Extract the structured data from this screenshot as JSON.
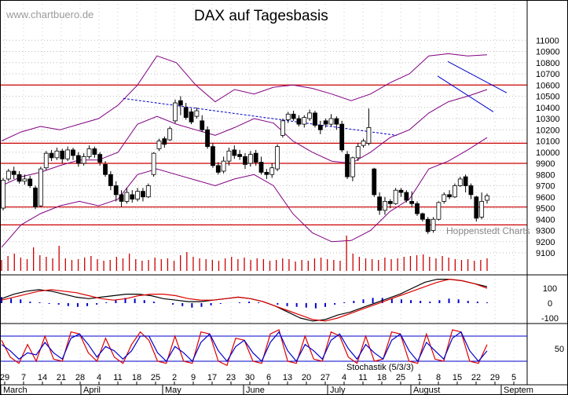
{
  "title": "DAX auf Tagesbasis",
  "watermark": "www.chartbuero.de",
  "source_label": "Hoppenstedt Charts",
  "stochastic_label": "Stochastik (5/3/3)",
  "colors": {
    "resistance_lines": "#cc0000",
    "trend_lines": "#0000cc",
    "bollinger": "#800080",
    "macd_line": "#000000",
    "signal_line": "#dd0000",
    "histogram": "#0000cc",
    "volume": "#cc0000"
  },
  "chart_data": {
    "type": "candlestick",
    "title": "DAX auf Tagesbasis",
    "y_ticks": [
      9100,
      9200,
      9300,
      9400,
      9500,
      9600,
      9700,
      9800,
      9900,
      10000,
      10100,
      10200,
      10300,
      10400,
      10500,
      10600,
      10700,
      10800,
      10900,
      11000
    ],
    "ylim": [
      9030,
      11040
    ],
    "horizontal_levels": [
      10600,
      10080,
      9900,
      9510,
      9350
    ],
    "day_ticks": [
      "29",
      "7",
      "14",
      "21",
      "28",
      "4",
      "11",
      "18",
      "25",
      "2",
      "9",
      "17",
      "23",
      "30",
      "6",
      "13",
      "20",
      "27",
      "4",
      "11",
      "18",
      "25",
      "1",
      "8",
      "15",
      "22",
      "29",
      "5"
    ],
    "month_labels": [
      "March",
      "April",
      "May",
      "June",
      "July",
      "August",
      "Septem"
    ],
    "candles": [
      {
        "o": 9500,
        "c": 9750,
        "h": 9770,
        "l": 9480
      },
      {
        "o": 9760,
        "c": 9830,
        "h": 9850,
        "l": 9740
      },
      {
        "o": 9830,
        "c": 9800,
        "h": 9870,
        "l": 9760
      },
      {
        "o": 9800,
        "c": 9740,
        "h": 9830,
        "l": 9720
      },
      {
        "o": 9740,
        "c": 9760,
        "h": 9800,
        "l": 9710
      },
      {
        "o": 9760,
        "c": 9700,
        "h": 9790,
        "l": 9680
      },
      {
        "o": 9680,
        "c": 9510,
        "h": 9700,
        "l": 9490
      },
      {
        "o": 9520,
        "c": 9850,
        "h": 9870,
        "l": 9510
      },
      {
        "o": 9860,
        "c": 9990,
        "h": 10010,
        "l": 9840
      },
      {
        "o": 9990,
        "c": 9950,
        "h": 10020,
        "l": 9920
      },
      {
        "o": 9950,
        "c": 10010,
        "h": 10040,
        "l": 9930
      },
      {
        "o": 10010,
        "c": 9940,
        "h": 10030,
        "l": 9900
      },
      {
        "o": 9940,
        "c": 10020,
        "h": 10050,
        "l": 9920
      },
      {
        "o": 10020,
        "c": 9970,
        "h": 10040,
        "l": 9930
      },
      {
        "o": 9970,
        "c": 9900,
        "h": 10000,
        "l": 9870
      },
      {
        "o": 9900,
        "c": 9960,
        "h": 9990,
        "l": 9880
      },
      {
        "o": 9960,
        "c": 10030,
        "h": 10060,
        "l": 9940
      },
      {
        "o": 10030,
        "c": 9980,
        "h": 10050,
        "l": 9950
      },
      {
        "o": 9980,
        "c": 9910,
        "h": 10000,
        "l": 9880
      },
      {
        "o": 9890,
        "c": 9800,
        "h": 9920,
        "l": 9780
      },
      {
        "o": 9800,
        "c": 9700,
        "h": 9830,
        "l": 9660
      },
      {
        "o": 9700,
        "c": 9620,
        "h": 9740,
        "l": 9560
      },
      {
        "o": 9620,
        "c": 9560,
        "h": 9660,
        "l": 9510
      },
      {
        "o": 9560,
        "c": 9640,
        "h": 9680,
        "l": 9540
      },
      {
        "o": 9620,
        "c": 9580,
        "h": 9660,
        "l": 9550
      },
      {
        "o": 9580,
        "c": 9650,
        "h": 9680,
        "l": 9560
      },
      {
        "o": 9650,
        "c": 9600,
        "h": 9680,
        "l": 9560
      },
      {
        "o": 9600,
        "c": 9700,
        "h": 9720,
        "l": 9590
      },
      {
        "o": 9800,
        "c": 9990,
        "h": 10000,
        "l": 9780
      },
      {
        "o": 10030,
        "c": 10100,
        "h": 10120,
        "l": 10010
      },
      {
        "o": 10120,
        "c": 10070,
        "h": 10140,
        "l": 10040
      },
      {
        "o": 10110,
        "c": 10210,
        "h": 10230,
        "l": 10100
      },
      {
        "o": 10280,
        "c": 10440,
        "h": 10470,
        "l": 10260
      },
      {
        "o": 10460,
        "c": 10420,
        "h": 10500,
        "l": 10330
      },
      {
        "o": 10400,
        "c": 10310,
        "h": 10440,
        "l": 10290
      },
      {
        "o": 10360,
        "c": 10270,
        "h": 10390,
        "l": 10250
      },
      {
        "o": 10320,
        "c": 10370,
        "h": 10400,
        "l": 10300
      },
      {
        "o": 10280,
        "c": 10200,
        "h": 10330,
        "l": 10180
      },
      {
        "o": 10200,
        "c": 10050,
        "h": 10230,
        "l": 10030
      },
      {
        "o": 10050,
        "c": 9880,
        "h": 10080,
        "l": 9860
      },
      {
        "o": 9880,
        "c": 9820,
        "h": 9910,
        "l": 9800
      },
      {
        "o": 9830,
        "c": 9920,
        "h": 9960,
        "l": 9810
      },
      {
        "o": 9920,
        "c": 10010,
        "h": 10040,
        "l": 9880
      },
      {
        "o": 10020,
        "c": 9970,
        "h": 10060,
        "l": 9940
      },
      {
        "o": 9980,
        "c": 9960,
        "h": 10020,
        "l": 9930
      },
      {
        "o": 9960,
        "c": 9890,
        "h": 9990,
        "l": 9850
      },
      {
        "o": 9900,
        "c": 9980,
        "h": 10010,
        "l": 9870
      },
      {
        "o": 9990,
        "c": 9910,
        "h": 10020,
        "l": 9880
      },
      {
        "o": 9910,
        "c": 9820,
        "h": 9960,
        "l": 9800
      },
      {
        "o": 9820,
        "c": 9800,
        "h": 9850,
        "l": 9760
      },
      {
        "o": 9800,
        "c": 9860,
        "h": 9900,
        "l": 9770
      },
      {
        "o": 9850,
        "c": 10050,
        "h": 10070,
        "l": 9830
      },
      {
        "o": 10150,
        "c": 10280,
        "h": 10300,
        "l": 10130
      },
      {
        "o": 10290,
        "c": 10340,
        "h": 10360,
        "l": 10260
      },
      {
        "o": 10340,
        "c": 10300,
        "h": 10370,
        "l": 10280
      },
      {
        "o": 10300,
        "c": 10250,
        "h": 10330,
        "l": 10230
      },
      {
        "o": 10250,
        "c": 10310,
        "h": 10330,
        "l": 10220
      },
      {
        "o": 10300,
        "c": 10350,
        "h": 10380,
        "l": 10280
      },
      {
        "o": 10350,
        "c": 10240,
        "h": 10370,
        "l": 10220
      },
      {
        "o": 10240,
        "c": 10200,
        "h": 10280,
        "l": 10160
      },
      {
        "o": 10280,
        "c": 10250,
        "h": 10300,
        "l": 10220
      },
      {
        "o": 10250,
        "c": 10300,
        "h": 10340,
        "l": 10230
      },
      {
        "o": 10300,
        "c": 10250,
        "h": 10320,
        "l": 10200
      },
      {
        "o": 10250,
        "c": 10020,
        "h": 10280,
        "l": 10000
      },
      {
        "o": 9980,
        "c": 9780,
        "h": 10010,
        "l": 9760
      },
      {
        "o": 9780,
        "c": 9950,
        "h": 9960,
        "l": 9740
      },
      {
        "o": 9950,
        "c": 10050,
        "h": 10080,
        "l": 9920
      },
      {
        "o": 10060,
        "c": 10100,
        "h": 10120,
        "l": 10040
      },
      {
        "o": 10080,
        "c": 10220,
        "h": 10390,
        "l": 10060
      },
      {
        "o": 9850,
        "c": 9620,
        "h": 9860,
        "l": 9600
      },
      {
        "o": 9600,
        "c": 9480,
        "h": 9640,
        "l": 9440
      },
      {
        "o": 9480,
        "c": 9560,
        "h": 9600,
        "l": 9440
      },
      {
        "o": 9560,
        "c": 9540,
        "h": 9580,
        "l": 9500
      },
      {
        "o": 9540,
        "c": 9660,
        "h": 9680,
        "l": 9530
      },
      {
        "o": 9660,
        "c": 9640,
        "h": 9680,
        "l": 9600
      },
      {
        "o": 9640,
        "c": 9570,
        "h": 9660,
        "l": 9550
      },
      {
        "o": 9560,
        "c": 9540,
        "h": 9650,
        "l": 9510
      },
      {
        "o": 9540,
        "c": 9450,
        "h": 9560,
        "l": 9430
      },
      {
        "o": 9450,
        "c": 9400,
        "h": 9460,
        "l": 9380
      },
      {
        "o": 9400,
        "c": 9290,
        "h": 9420,
        "l": 9270
      },
      {
        "o": 9300,
        "c": 9400,
        "h": 9420,
        "l": 9280
      },
      {
        "o": 9400,
        "c": 9550,
        "h": 9560,
        "l": 9390
      },
      {
        "o": 9560,
        "c": 9620,
        "h": 9640,
        "l": 9540
      },
      {
        "o": 9620,
        "c": 9600,
        "h": 9660,
        "l": 9580
      },
      {
        "o": 9600,
        "c": 9700,
        "h": 9720,
        "l": 9590
      },
      {
        "o": 9700,
        "c": 9760,
        "h": 9780,
        "l": 9690
      },
      {
        "o": 9780,
        "c": 9700,
        "h": 9800,
        "l": 9640
      },
      {
        "o": 9700,
        "c": 9620,
        "h": 9720,
        "l": 9580
      },
      {
        "o": 9600,
        "c": 9410,
        "h": 9610,
        "l": 9380
      },
      {
        "o": 9420,
        "c": 9560,
        "h": 9640,
        "l": 9400
      },
      {
        "o": 9570,
        "c": 9610,
        "h": 9630,
        "l": 9540
      }
    ],
    "bollinger_bands": {
      "upper": [
        10100,
        10180,
        10230,
        10200,
        10250,
        10300,
        10420,
        10600,
        10860,
        10800,
        10600,
        10450,
        10560,
        10520,
        10580,
        10600,
        10570,
        10520,
        10460,
        10520,
        10620,
        10700,
        10860,
        10880,
        10860,
        10870
      ],
      "middle": [
        9700,
        9780,
        9820,
        9880,
        9930,
        9930,
        10000,
        10250,
        10320,
        10250,
        10200,
        10150,
        10220,
        10300,
        10260,
        10100,
        10000,
        9920,
        9900,
        10000,
        10130,
        10200,
        10350,
        10450,
        10500,
        10560
      ],
      "lower": [
        9150,
        9350,
        9450,
        9520,
        9560,
        9520,
        9580,
        9800,
        9850,
        9800,
        9750,
        9700,
        9760,
        9800,
        9700,
        9450,
        9280,
        9200,
        9210,
        9300,
        9470,
        9580,
        9850,
        9920,
        10020,
        10130
      ]
    },
    "trend_lines": [
      {
        "from": [
          157,
          10480
        ],
        "to": [
          505,
          10150
        ]
      },
      {
        "from": [
          570,
          10810
        ],
        "to": [
          645,
          10530
        ]
      },
      {
        "from": [
          557,
          10680
        ],
        "to": [
          628,
          10360
        ]
      }
    ],
    "volume": [
      14,
      19,
      22,
      17,
      15,
      30,
      20,
      18,
      16,
      32,
      16,
      14,
      15,
      17,
      19,
      15,
      13,
      14,
      18,
      16,
      22,
      15,
      13,
      14,
      17,
      15,
      16,
      13,
      20,
      24,
      18,
      16,
      15,
      14,
      13,
      16,
      18,
      15,
      17,
      14,
      16,
      15,
      13,
      14,
      16,
      15,
      12,
      14,
      13,
      16,
      17,
      15,
      14,
      13,
      45,
      22,
      18,
      16,
      15,
      14,
      17,
      15,
      16,
      18,
      19,
      20,
      21,
      18,
      16,
      19,
      17,
      15,
      14,
      15,
      13,
      14,
      16
    ],
    "macd": {
      "y_ticks": [
        100,
        0,
        -100
      ],
      "histogram": [
        40,
        30,
        25,
        10,
        5,
        -5,
        -10,
        -20,
        -25,
        -20,
        -10,
        5,
        20,
        35,
        30,
        20,
        10,
        0,
        -10,
        -20,
        -30,
        -25,
        -15,
        -5,
        0,
        5,
        10,
        5,
        0,
        -10,
        -20,
        -25,
        -30,
        -35,
        -25,
        -10,
        5,
        15,
        25,
        35,
        35,
        30,
        25,
        20,
        15,
        10,
        20,
        30,
        25,
        15,
        10,
        5
      ],
      "macd_line": [
        30,
        60,
        80,
        90,
        80,
        60,
        40,
        30,
        40,
        50,
        60,
        60,
        50,
        30,
        20,
        10,
        10,
        20,
        30,
        40,
        30,
        10,
        -20,
        -60,
        -100,
        -120,
        -110,
        -80,
        -60,
        -30,
        0,
        30,
        60,
        100,
        140,
        160,
        160,
        150,
        130,
        110
      ],
      "signal_line": [
        20,
        40,
        60,
        80,
        90,
        80,
        70,
        50,
        30,
        20,
        30,
        50,
        60,
        60,
        50,
        30,
        20,
        20,
        30,
        40,
        30,
        10,
        -20,
        -50,
        -80,
        -110,
        -120,
        -100,
        -70,
        -40,
        -10,
        20,
        50,
        80,
        110,
        140,
        160,
        150,
        130,
        100
      ]
    },
    "stochastic": {
      "label": "Stochastik (5/3/3)",
      "y_ticks": [
        50
      ],
      "levels": [
        80,
        20
      ],
      "k": [
        70,
        30,
        15,
        60,
        20,
        80,
        25,
        20,
        90,
        85,
        40,
        20,
        75,
        30,
        15,
        60,
        90,
        70,
        20,
        15,
        80,
        20,
        15,
        90,
        85,
        20,
        10,
        75,
        70,
        20,
        15,
        85,
        95,
        20,
        15,
        80,
        25,
        20,
        90,
        80,
        30,
        15,
        80,
        20,
        25,
        90,
        85,
        20,
        15,
        85,
        25,
        20,
        95,
        90,
        20,
        15,
        60
      ],
      "d": [
        60,
        45,
        25,
        40,
        35,
        65,
        40,
        25,
        75,
        85,
        60,
        30,
        55,
        45,
        25,
        45,
        80,
        80,
        40,
        20,
        55,
        40,
        20,
        65,
        85,
        45,
        20,
        55,
        70,
        40,
        20,
        65,
        90,
        45,
        20,
        60,
        45,
        25,
        70,
        85,
        50,
        25,
        60,
        40,
        25,
        70,
        85,
        45,
        20,
        65,
        45,
        25,
        75,
        90,
        45,
        20,
        45
      ]
    }
  }
}
